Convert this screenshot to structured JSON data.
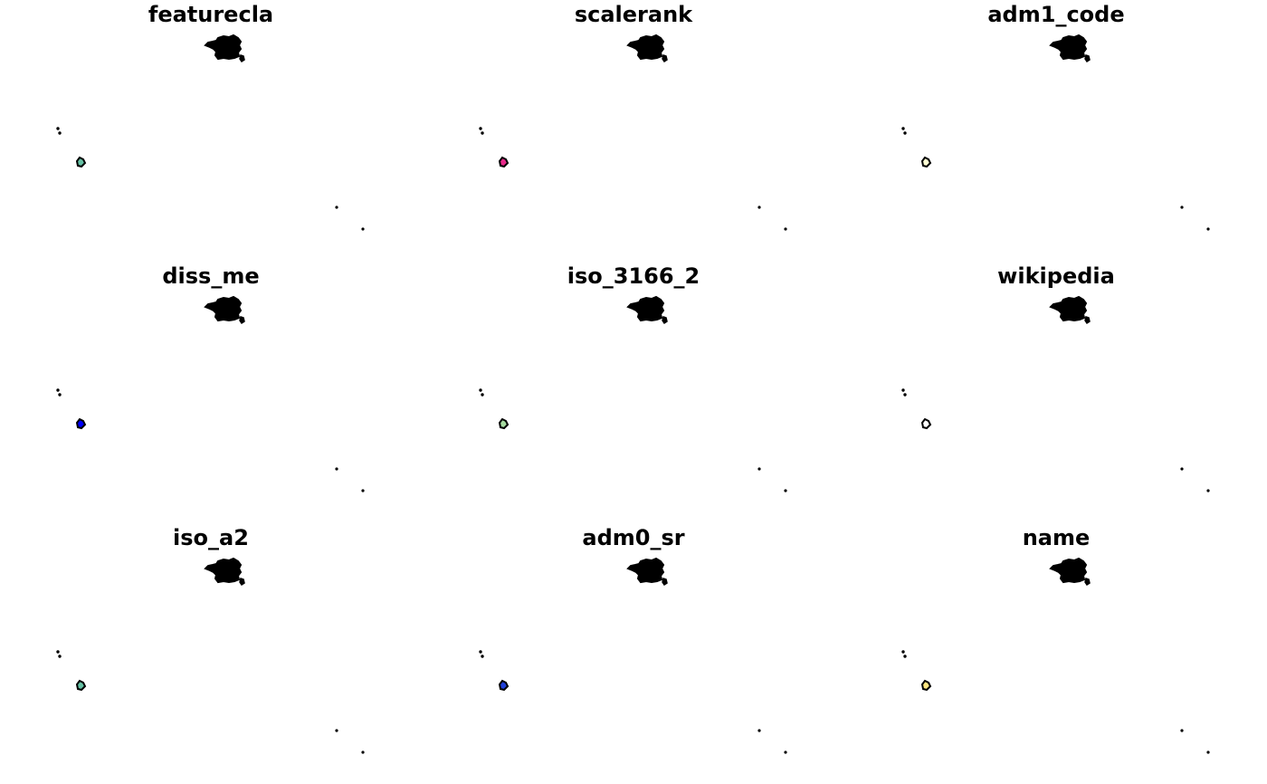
{
  "panels": [
    {
      "title": "featurecla",
      "highlight_fill": "#66c2a5",
      "highlight_name": "territory-polygon"
    },
    {
      "title": "scalerank",
      "highlight_fill": "#e7298a",
      "highlight_name": "territory-polygon"
    },
    {
      "title": "adm1_code",
      "highlight_fill": "#ffffd4",
      "highlight_name": "territory-polygon"
    },
    {
      "title": "diss_me",
      "highlight_fill": "#0000ff",
      "highlight_name": "territory-polygon"
    },
    {
      "title": "iso_3166_2",
      "highlight_fill": "#a6dba0",
      "highlight_name": "territory-polygon"
    },
    {
      "title": "wikipedia",
      "highlight_fill": "#ffffff",
      "highlight_name": "territory-polygon"
    },
    {
      "title": "iso_a2",
      "highlight_fill": "#66c2a5",
      "highlight_name": "territory-polygon"
    },
    {
      "title": "adm0_sr",
      "highlight_fill": "#1f3fd8",
      "highlight_name": "territory-polygon"
    },
    {
      "title": "name",
      "highlight_fill": "#ffe680",
      "highlight_name": "territory-polygon"
    }
  ],
  "map": {
    "mainland_fill": "#000000",
    "outline_color": "#000000"
  }
}
